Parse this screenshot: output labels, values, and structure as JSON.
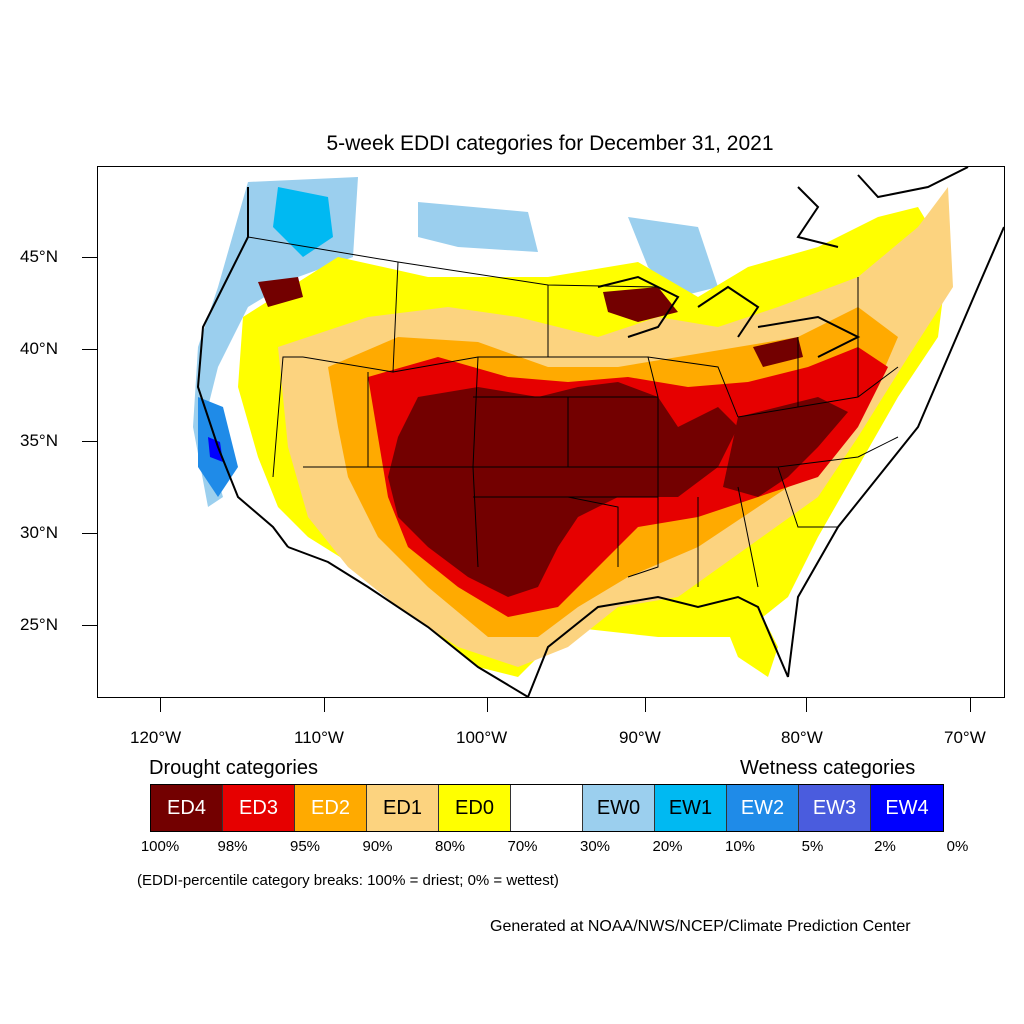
{
  "title": "5-week EDDI categories for December 31, 2021",
  "lat_labels": [
    "45°N",
    "40°N",
    "35°N",
    "30°N",
    "25°N"
  ],
  "lon_labels": [
    "120°W",
    "110°W",
    "100°W",
    "90°W",
    "80°W",
    "70°W"
  ],
  "legend": {
    "drought_heading": "Drought categories",
    "wetness_heading": "Wetness categories",
    "categories": [
      {
        "label": "ED4",
        "color": "#730000",
        "text_color": "#ffffff"
      },
      {
        "label": "ED3",
        "color": "#e60000",
        "text_color": "#ffffff"
      },
      {
        "label": "ED2",
        "color": "#ffaa00",
        "text_color": "#ffffff"
      },
      {
        "label": "ED1",
        "color": "#fcd37f",
        "text_color": "#000000"
      },
      {
        "label": "ED0",
        "color": "#ffff00",
        "text_color": "#000000"
      },
      {
        "label": "",
        "color": "#ffffff",
        "text_color": "#000000"
      },
      {
        "label": "EW0",
        "color": "#9bcfee",
        "text_color": "#000000"
      },
      {
        "label": "EW1",
        "color": "#00b9f2",
        "text_color": "#000000"
      },
      {
        "label": "EW2",
        "color": "#1f8be8",
        "text_color": "#ffffff"
      },
      {
        "label": "EW3",
        "color": "#4a5cde",
        "text_color": "#ffffff"
      },
      {
        "label": "EW4",
        "color": "#0000ff",
        "text_color": "#ffffff"
      }
    ],
    "breaks": [
      "100%",
      "98%",
      "95%",
      "90%",
      "80%",
      "70%",
      "30%",
      "20%",
      "10%",
      "5%",
      "2%",
      "0%"
    ]
  },
  "note": "(EDDI-percentile category breaks: 100% = driest; 0% = wettest)",
  "credit": "Generated at NOAA/NWS/NCEP/Climate Prediction Center"
}
